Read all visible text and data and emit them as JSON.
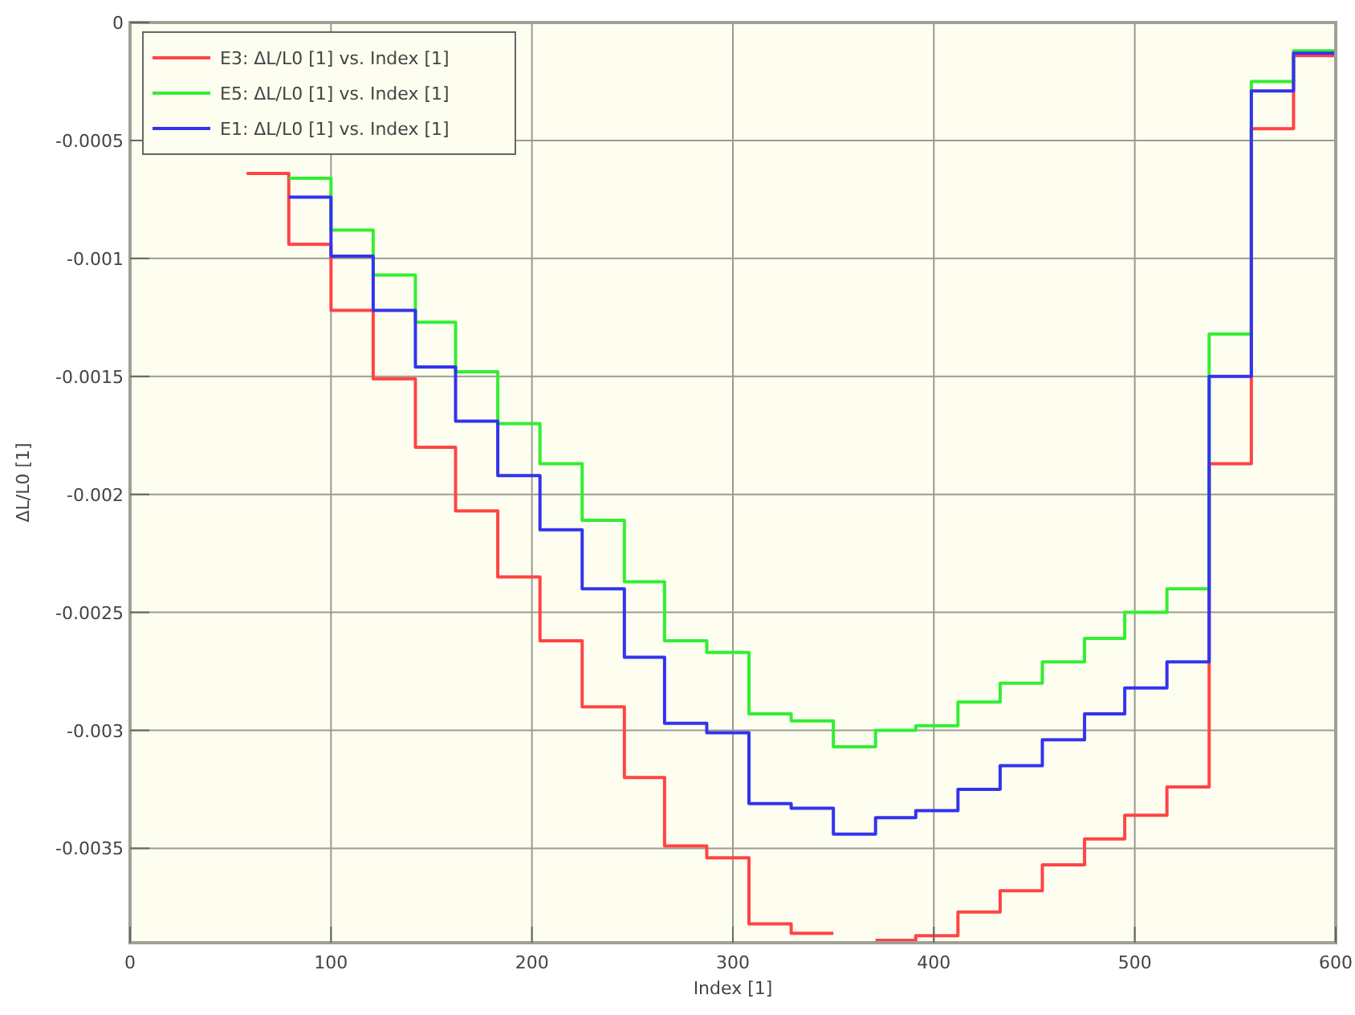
{
  "chart_data": {
    "type": "step",
    "xlabel": "Index [1]",
    "ylabel": "ΔL/L0 [1]",
    "x": [
      0,
      37,
      58,
      79,
      100,
      121,
      142,
      162,
      183,
      204,
      225,
      246,
      266,
      287,
      308,
      329,
      350,
      371,
      391,
      412,
      433,
      454,
      475,
      495,
      516,
      537,
      558,
      579,
      600
    ],
    "series": [
      {
        "name": "E3: ΔL/L0 [1] vs. Index [1]",
        "color": "#ff4444",
        "values": [
          0,
          null,
          -0.00064,
          -0.00094,
          -0.00122,
          -0.00151,
          -0.0018,
          -0.00207,
          -0.00235,
          -0.00262,
          -0.0029,
          -0.0032,
          -0.00349,
          -0.00354,
          -0.00382,
          -0.00386,
          null,
          -0.00389,
          -0.00387,
          -0.00377,
          -0.00368,
          -0.00357,
          -0.00346,
          -0.00336,
          -0.00324,
          -0.00187,
          -0.00045,
          -0.00014,
          -0.00014
        ]
      },
      {
        "name": "E5: ΔL/L0 [1] vs. Index [1]",
        "color": "#33ee33",
        "values": [
          null,
          null,
          null,
          -0.00066,
          -0.00088,
          -0.00107,
          -0.00127,
          -0.00148,
          -0.0017,
          -0.00187,
          -0.00211,
          -0.00237,
          -0.00262,
          -0.00267,
          -0.00293,
          -0.00296,
          -0.00307,
          -0.003,
          -0.00298,
          -0.00288,
          -0.0028,
          -0.00271,
          -0.00261,
          -0.0025,
          -0.0024,
          -0.00132,
          -0.00025,
          -0.00012,
          -0.00012
        ]
      },
      {
        "name": "E1: ΔL/L0 [1] vs. Index [1]",
        "color": "#3333ee",
        "values": [
          null,
          null,
          null,
          -0.00074,
          -0.00099,
          -0.00122,
          -0.00146,
          -0.00169,
          -0.00192,
          -0.00215,
          -0.0024,
          -0.00269,
          -0.00297,
          -0.00301,
          -0.00331,
          -0.00333,
          -0.00344,
          -0.00337,
          -0.00334,
          -0.00325,
          -0.00315,
          -0.00304,
          -0.00293,
          -0.00282,
          -0.00271,
          -0.0015,
          -0.00029,
          -0.00013,
          -0.00013
        ]
      }
    ],
    "xlim": [
      0,
      600
    ],
    "xticks": [
      0,
      100,
      200,
      300,
      400,
      500,
      600
    ],
    "ylim": [
      -0.0039,
      0
    ],
    "yticks": [
      0,
      -0.0005,
      -0.001,
      -0.0015,
      -0.002,
      -0.0025,
      -0.003,
      -0.0035
    ],
    "grid": true,
    "legend": "top left"
  }
}
